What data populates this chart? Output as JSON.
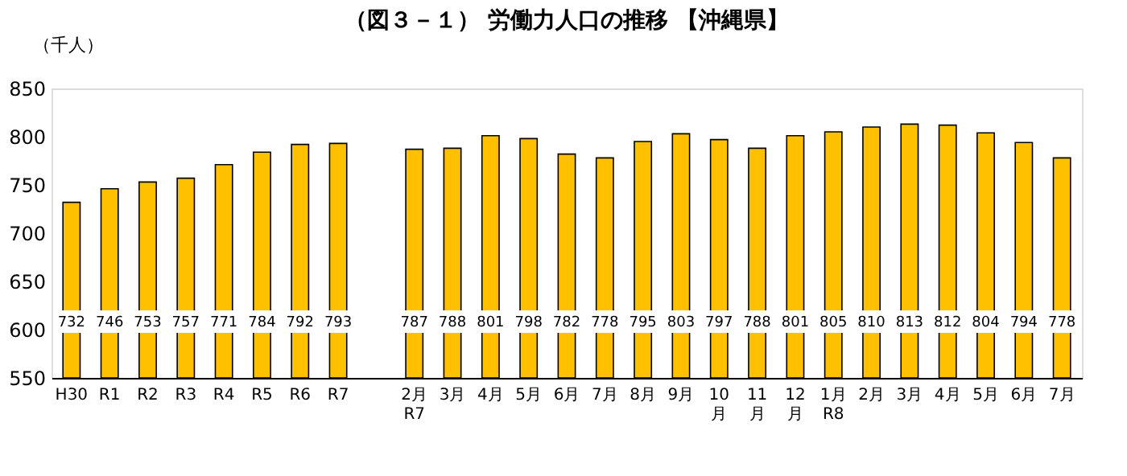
{
  "chart_data": {
    "type": "bar",
    "title": "（図３－１） 労働力人口の推移 【沖縄県】",
    "ylabel": "（千人）",
    "categories": [
      "H30",
      "R1",
      "R2",
      "R3",
      "R4",
      "R5",
      "R6",
      "R7",
      null,
      "2月\nR7",
      "3月",
      "4月",
      "5月",
      "6月",
      "7月",
      "8月",
      "9月",
      "10\n月",
      "11\n月",
      "12\n月",
      "1月\nR8",
      "2月",
      "3月",
      "4月",
      "5月",
      "6月",
      "7月"
    ],
    "values": [
      732,
      746,
      753,
      757,
      771,
      784,
      792,
      793,
      null,
      787,
      788,
      801,
      798,
      782,
      778,
      795,
      803,
      797,
      788,
      801,
      805,
      810,
      813,
      812,
      804,
      794,
      778
    ],
    "color": "#ffc000",
    "ylim": [
      550,
      850
    ],
    "yticks": [
      550,
      600,
      650,
      700,
      750,
      800,
      850
    ],
    "grid": false,
    "data_labels": true
  }
}
